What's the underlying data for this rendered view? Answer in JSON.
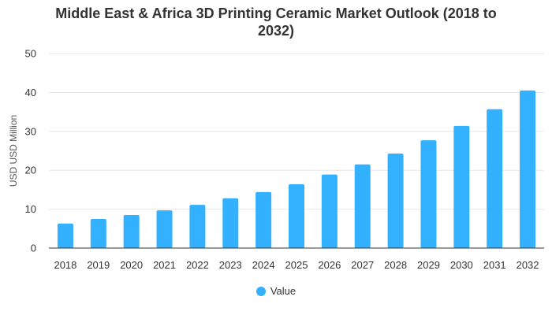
{
  "chart_data": {
    "type": "bar",
    "title_lines": [
      "Middle East & Africa 3D Printing Ceramic Market Outlook (2018 to",
      "2032)"
    ],
    "ylabel": "USD USD Million",
    "xlabel": "",
    "categories": [
      "2018",
      "2019",
      "2020",
      "2021",
      "2022",
      "2023",
      "2024",
      "2025",
      "2026",
      "2027",
      "2028",
      "2029",
      "2030",
      "2031",
      "2032"
    ],
    "series": [
      {
        "name": "Value",
        "values": [
          6.3,
          7.5,
          8.5,
          9.7,
          11.1,
          12.8,
          14.4,
          16.4,
          18.9,
          21.5,
          24.3,
          27.7,
          31.4,
          35.7,
          40.5
        ]
      }
    ],
    "ylim": [
      0,
      50
    ],
    "yticks": [
      0,
      10,
      20,
      30,
      40,
      50
    ],
    "grid": true,
    "legend_position": "bottom",
    "bar_color": "#33b1ff"
  }
}
